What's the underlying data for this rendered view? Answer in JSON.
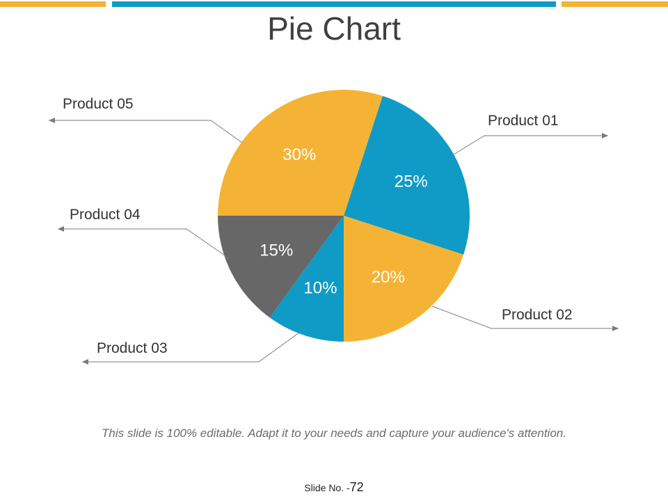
{
  "slide": {
    "title": "Pie Chart",
    "footer_note": "This slide is 100% editable. Adapt it to your needs and capture your audience's attention.",
    "slide_no_label": "Slide No. -",
    "slide_no_value": "72"
  },
  "colors": {
    "yellow": "#f5b335",
    "blue": "#0f9bc6",
    "gray": "#676767"
  },
  "chart_data": {
    "type": "pie",
    "title": "Pie Chart",
    "slices": [
      {
        "label": "Product 01",
        "value": 25,
        "value_label": "25%",
        "color": "#0f9bc6"
      },
      {
        "label": "Product 02",
        "value": 20,
        "value_label": "20%",
        "color": "#f5b335"
      },
      {
        "label": "Product 03",
        "value": 10,
        "value_label": "10%",
        "color": "#0f9bc6"
      },
      {
        "label": "Product 04",
        "value": 15,
        "value_label": "15%",
        "color": "#676767"
      },
      {
        "label": "Product 05",
        "value": 30,
        "value_label": "30%",
        "color": "#f5b335"
      }
    ]
  }
}
